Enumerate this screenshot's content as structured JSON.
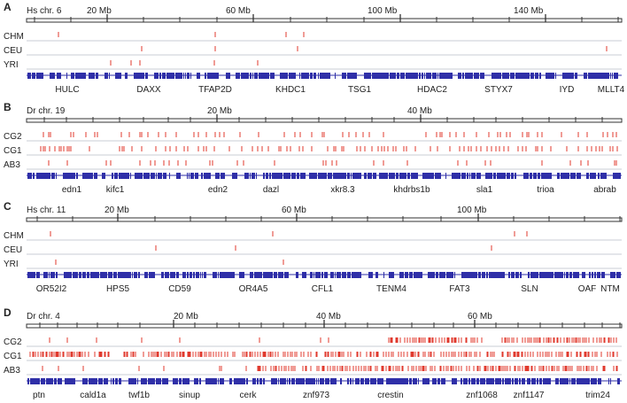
{
  "colors": {
    "ruler": "#333333",
    "track_line": "#c9cdd6",
    "variant": "#e03a2e",
    "gene": "#2f2fa8",
    "text": "#222222"
  },
  "panels": [
    {
      "letter": "A",
      "chrom_label": "Hs chr. 6",
      "ticks": [
        "20 Mb",
        "60 Mb",
        "100 Mb",
        "140 Mb"
      ],
      "tracks": [
        "CHM",
        "CEU",
        "YRI"
      ],
      "genes": [
        "HULC",
        "DAXX",
        "TFAP2D",
        "KHDC1",
        "TSG1",
        "HDAC2",
        "STYX7",
        "IYD",
        "MLLT4"
      ]
    },
    {
      "letter": "B",
      "chrom_label": "Dr chr. 19",
      "ticks": [
        "20 Mb",
        "40 Mb"
      ],
      "tracks": [
        "CG2",
        "CG1",
        "AB3"
      ],
      "genes": [
        "edn1",
        "kifc1",
        "edn2",
        "dazl",
        "xkr8.3",
        "khdrbs1b",
        "sla1",
        "trioa",
        "abrab"
      ]
    },
    {
      "letter": "C",
      "chrom_label": "Hs chr. 11",
      "ticks": [
        "20 Mb",
        "60 Mb",
        "100 Mb"
      ],
      "tracks": [
        "CHM",
        "CEU",
        "YRI"
      ],
      "genes": [
        "OR52I2",
        "HPS5",
        "CD59",
        "OR4A5",
        "CFL1",
        "TENM4",
        "FAT3",
        "SLN",
        "OAF",
        "NTM"
      ]
    },
    {
      "letter": "D",
      "chrom_label": "Dr chr. 4",
      "ticks": [
        "20 Mb",
        "40 Mb",
        "60 Mb"
      ],
      "tracks": [
        "CG2",
        "CG1",
        "AB3"
      ],
      "genes": [
        "ptn",
        "cald1a",
        "twf1b",
        "sinup",
        "cerk",
        "znf973",
        "crestin",
        "znf1068",
        "znf1147",
        "trim24"
      ]
    }
  ]
}
